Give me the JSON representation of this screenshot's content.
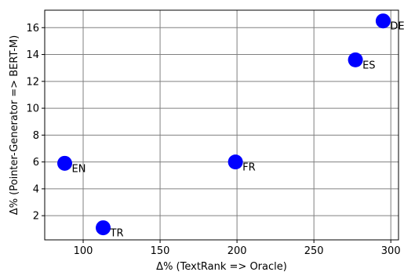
{
  "chart_data": {
    "type": "scatter",
    "xlabel": "Δ% (TextRank => Oracle)",
    "ylabel": "Δ% (Pointer-Generator => BERT-M)",
    "xlim": [
      75,
      305
    ],
    "ylim": [
      0.2,
      17.3
    ],
    "xticks": [
      100,
      150,
      200,
      250,
      300
    ],
    "yticks": [
      2,
      4,
      6,
      8,
      10,
      12,
      14,
      16
    ],
    "grid": true,
    "marker_color": "#0000ff",
    "points": [
      {
        "label": "EN",
        "x": 88,
        "y": 5.9
      },
      {
        "label": "TR",
        "x": 113,
        "y": 1.1
      },
      {
        "label": "FR",
        "x": 199,
        "y": 6.0
      },
      {
        "label": "ES",
        "x": 277,
        "y": 13.6
      },
      {
        "label": "DE",
        "x": 295,
        "y": 16.5
      }
    ]
  }
}
